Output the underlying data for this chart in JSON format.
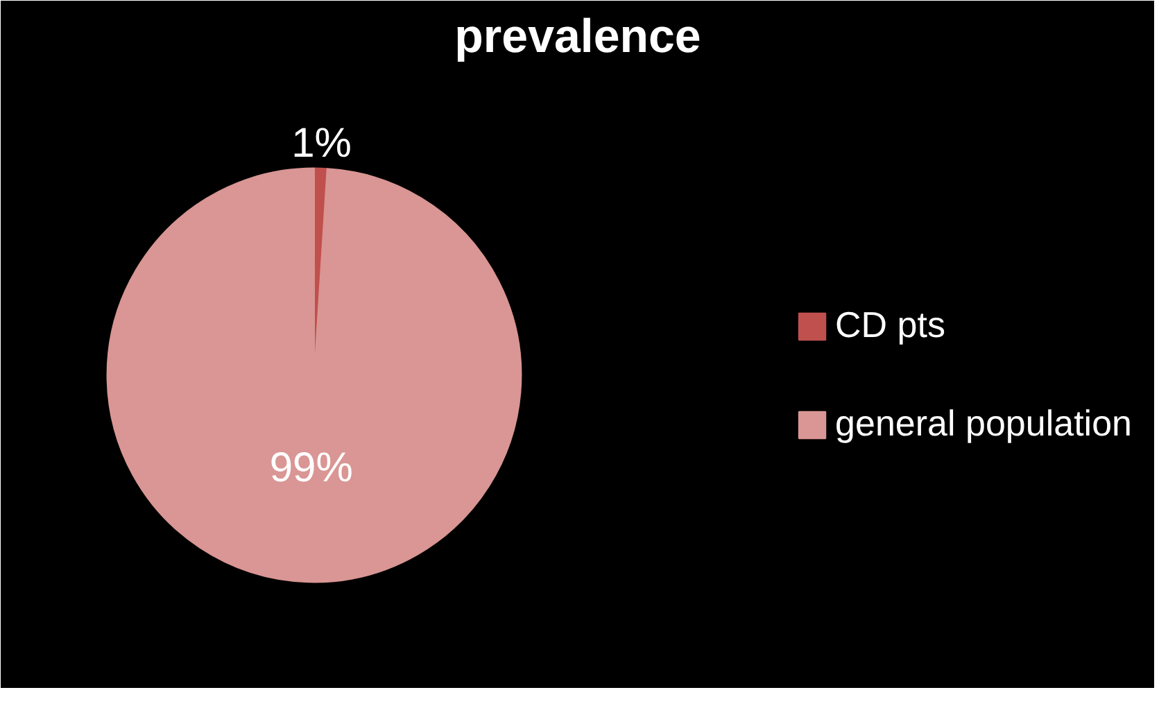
{
  "chart_data": {
    "type": "pie",
    "title": "prevalence",
    "categories": [
      "CD pts",
      "general population"
    ],
    "values": [
      1,
      99
    ],
    "colors": [
      "#c0504d",
      "#d99694"
    ],
    "value_labels": [
      "1%",
      "99%"
    ],
    "legend": "right"
  }
}
